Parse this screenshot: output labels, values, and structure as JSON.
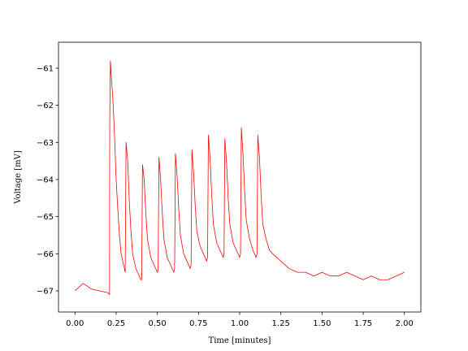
{
  "chart_data": {
    "type": "line",
    "xlabel": "Time [minutes]",
    "ylabel": "Voltage [mV]",
    "xlim": [
      -0.1,
      2.1
    ],
    "ylim": [
      -67.57,
      -60.3
    ],
    "xticks": [
      {
        "value": 0,
        "label": "0.00"
      },
      {
        "value": 0.25,
        "label": "0.25"
      },
      {
        "value": 0.5,
        "label": "0.50"
      },
      {
        "value": 0.75,
        "label": "0.75"
      },
      {
        "value": 1,
        "label": "1.00"
      },
      {
        "value": 1.25,
        "label": "1.25"
      },
      {
        "value": 1.5,
        "label": "1.50"
      },
      {
        "value": 1.75,
        "label": "1.75"
      },
      {
        "value": 2,
        "label": "2.00"
      }
    ],
    "yticks": [
      {
        "value": -67,
        "label": "−67"
      },
      {
        "value": -66,
        "label": "−66"
      },
      {
        "value": -65,
        "label": "−65"
      },
      {
        "value": -64,
        "label": "−64"
      },
      {
        "value": -63,
        "label": "−63"
      },
      {
        "value": -62,
        "label": "−62"
      },
      {
        "value": -61,
        "label": "−61"
      }
    ],
    "grid": false,
    "x": [
      0.0,
      0.05,
      0.1,
      0.15,
      0.2,
      0.21,
      0.211,
      0.215,
      0.22,
      0.23,
      0.24,
      0.25,
      0.26,
      0.27,
      0.28,
      0.29,
      0.3,
      0.305,
      0.31,
      0.32,
      0.33,
      0.34,
      0.35,
      0.37,
      0.4,
      0.405,
      0.41,
      0.42,
      0.43,
      0.44,
      0.46,
      0.48,
      0.5,
      0.505,
      0.51,
      0.52,
      0.53,
      0.54,
      0.56,
      0.58,
      0.6,
      0.605,
      0.61,
      0.62,
      0.63,
      0.64,
      0.66,
      0.68,
      0.7,
      0.705,
      0.71,
      0.72,
      0.73,
      0.74,
      0.76,
      0.78,
      0.8,
      0.805,
      0.81,
      0.82,
      0.83,
      0.84,
      0.86,
      0.88,
      0.9,
      0.905,
      0.91,
      0.92,
      0.93,
      0.94,
      0.96,
      0.98,
      1.0,
      1.005,
      1.01,
      1.02,
      1.03,
      1.04,
      1.06,
      1.08,
      1.1,
      1.105,
      1.11,
      1.12,
      1.13,
      1.14,
      1.16,
      1.18,
      1.2,
      1.25,
      1.3,
      1.35,
      1.4,
      1.45,
      1.5,
      1.55,
      1.6,
      1.65,
      1.7,
      1.75,
      1.8,
      1.85,
      1.9,
      1.95,
      2.0
    ],
    "series": [
      {
        "color": "#ff0000",
        "values": [
          -67.0,
          -66.8,
          -66.95,
          -67.0,
          -67.05,
          -67.1,
          -62.5,
          -60.8,
          -61.2,
          -61.8,
          -62.8,
          -64.0,
          -64.8,
          -65.5,
          -66.0,
          -66.2,
          -66.4,
          -66.5,
          -63.0,
          -63.5,
          -64.6,
          -65.4,
          -66.0,
          -66.4,
          -66.7,
          -66.7,
          -63.6,
          -64.0,
          -64.9,
          -65.6,
          -66.1,
          -66.3,
          -66.5,
          -66.4,
          -63.4,
          -64.0,
          -64.9,
          -65.6,
          -66.1,
          -66.3,
          -66.5,
          -66.4,
          -63.3,
          -63.9,
          -64.8,
          -65.5,
          -66.0,
          -66.2,
          -66.4,
          -66.3,
          -63.2,
          -63.8,
          -64.7,
          -65.4,
          -65.8,
          -66.0,
          -66.2,
          -66.1,
          -62.8,
          -63.4,
          -64.4,
          -65.2,
          -65.7,
          -65.9,
          -66.1,
          -66.0,
          -62.9,
          -63.5,
          -64.5,
          -65.2,
          -65.7,
          -65.9,
          -66.1,
          -66.0,
          -62.6,
          -63.3,
          -64.3,
          -65.1,
          -65.6,
          -65.9,
          -66.1,
          -66.0,
          -62.8,
          -63.4,
          -64.4,
          -65.2,
          -65.6,
          -65.9,
          -66.0,
          -66.2,
          -66.4,
          -66.5,
          -66.5,
          -66.6,
          -66.5,
          -66.6,
          -66.6,
          -66.5,
          -66.6,
          -66.7,
          -66.6,
          -66.7,
          -66.7,
          -66.6,
          -66.5
        ]
      }
    ]
  }
}
